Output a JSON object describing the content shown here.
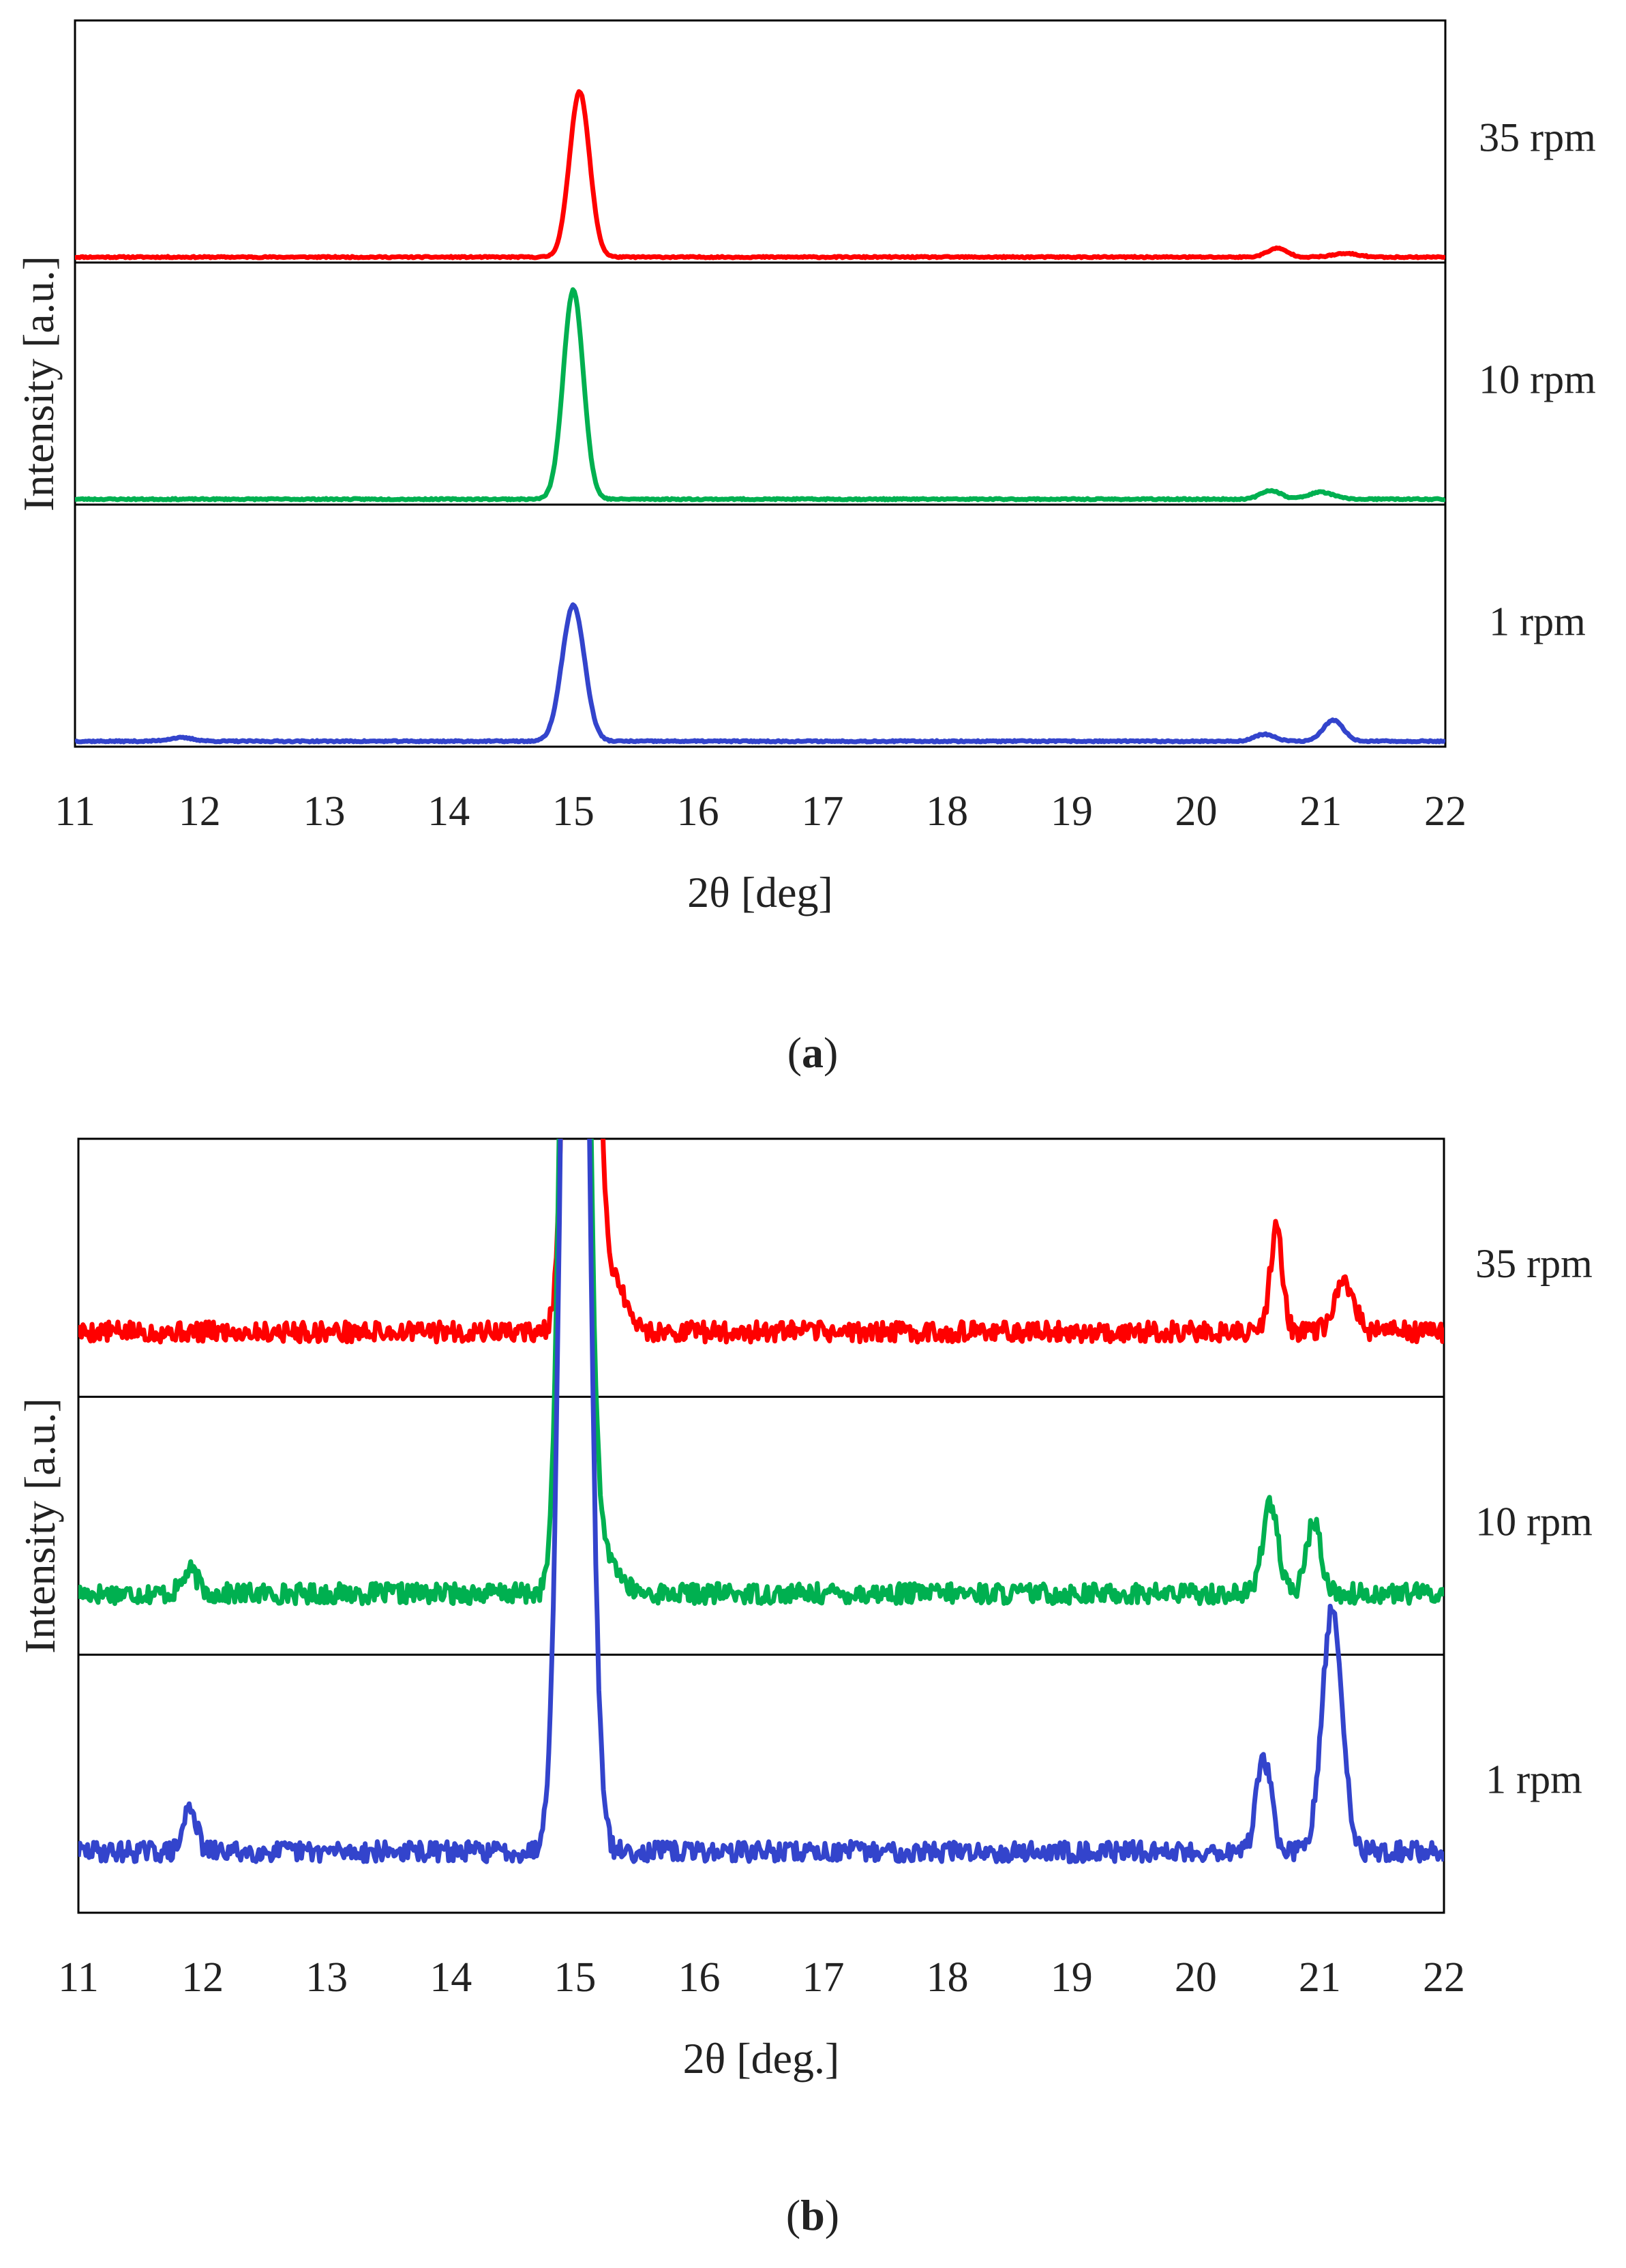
{
  "chart_data": [
    {
      "panel": "a",
      "panel_label_open": "(",
      "panel_label_letter": "a",
      "panel_label_close": ")",
      "type": "line",
      "xlabel": "2θ [deg]",
      "ylabel": "Intensity [a.u.]",
      "xlim": [
        11,
        22
      ],
      "ylim": [
        0,
        1
      ],
      "grid": false,
      "legend": "right",
      "x_ticks": [
        "11",
        "12",
        "13",
        "14",
        "15",
        "16",
        "17",
        "18",
        "19",
        "20",
        "21",
        "22"
      ],
      "series": [
        {
          "name": "35 rpm",
          "color": "#ff0000",
          "baseline": 0.0,
          "noise": 0.004,
          "seed": 11,
          "peaks": [
            {
              "x": 15.05,
              "height": 0.95,
              "width": 0.08
            },
            {
              "x": 20.65,
              "height": 0.05,
              "width": 0.08
            },
            {
              "x": 21.2,
              "height": 0.02,
              "width": 0.1
            }
          ]
        },
        {
          "name": "10 rpm",
          "color": "#00b050",
          "baseline": 0.0,
          "noise": 0.004,
          "seed": 23,
          "peaks": [
            {
              "x": 15.0,
              "height": 1.2,
              "width": 0.08
            },
            {
              "x": 20.6,
              "height": 0.05,
              "width": 0.08
            },
            {
              "x": 21.0,
              "height": 0.04,
              "width": 0.1
            }
          ]
        },
        {
          "name": "1 rpm",
          "color": "#3344cc",
          "baseline": 0.0,
          "noise": 0.004,
          "seed": 37,
          "peaks": [
            {
              "x": 15.0,
              "height": 0.78,
              "width": 0.09
            },
            {
              "x": 11.85,
              "height": 0.02,
              "width": 0.1
            },
            {
              "x": 20.55,
              "height": 0.04,
              "width": 0.08
            },
            {
              "x": 21.1,
              "height": 0.12,
              "width": 0.08
            }
          ]
        }
      ]
    },
    {
      "panel": "b",
      "panel_label_open": "(",
      "panel_label_letter": "b",
      "panel_label_close": ")",
      "type": "line",
      "xlabel": "2θ [deg.]",
      "ylabel": "Intensity [a.u.]",
      "xlim": [
        11,
        22
      ],
      "ylim": [
        0,
        1
      ],
      "grid": false,
      "legend": "right",
      "x_ticks": [
        "11",
        "12",
        "13",
        "14",
        "15",
        "16",
        "17",
        "18",
        "19",
        "20",
        "21",
        "22"
      ],
      "series": [
        {
          "name": "35 rpm",
          "color": "#ff0000",
          "baseline": 0.32,
          "noise": 0.055,
          "seed": 5,
          "peaks": [
            {
              "x": 15.05,
              "height": 9.0,
              "width": 0.08
            },
            {
              "x": 15.3,
              "height": 0.3,
              "width": 0.1
            },
            {
              "x": 20.65,
              "height": 0.55,
              "width": 0.05
            },
            {
              "x": 21.2,
              "height": 0.25,
              "width": 0.08
            }
          ]
        },
        {
          "name": "10 rpm",
          "color": "#00b050",
          "baseline": 0.3,
          "noise": 0.055,
          "seed": 17,
          "peaks": [
            {
              "x": 15.0,
              "height": 9.0,
              "width": 0.08
            },
            {
              "x": 15.25,
              "height": 0.2,
              "width": 0.1
            },
            {
              "x": 11.9,
              "height": 0.12,
              "width": 0.06
            },
            {
              "x": 20.6,
              "height": 0.5,
              "width": 0.06
            },
            {
              "x": 20.95,
              "height": 0.38,
              "width": 0.06
            }
          ]
        },
        {
          "name": "1 rpm",
          "color": "#3344cc",
          "baseline": 0.3,
          "noise": 0.055,
          "seed": 29,
          "peaks": [
            {
              "x": 15.0,
              "height": 9.0,
              "width": 0.09
            },
            {
              "x": 11.9,
              "height": 0.25,
              "width": 0.05
            },
            {
              "x": 20.55,
              "height": 0.5,
              "width": 0.06
            },
            {
              "x": 21.1,
              "height": 1.3,
              "width": 0.08
            }
          ]
        }
      ]
    }
  ]
}
